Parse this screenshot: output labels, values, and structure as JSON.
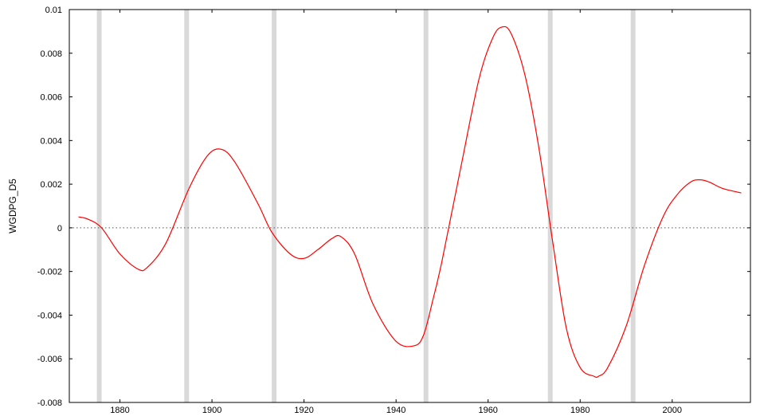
{
  "chart_data": {
    "type": "line",
    "title": "",
    "xlabel": "",
    "ylabel": "WGDPG_D5",
    "xlim": [
      1869,
      2017
    ],
    "ylim": [
      -0.008,
      0.01
    ],
    "x_ticks": [
      1880,
      1900,
      1920,
      1940,
      1960,
      1980,
      2000
    ],
    "x_tick_labels": [
      "1880",
      "1900",
      "1920",
      "1940",
      "1960",
      "1980",
      "2000"
    ],
    "y_ticks": [
      -0.008,
      -0.006,
      -0.004,
      -0.002,
      0,
      0.002,
      0.004,
      0.006,
      0.008,
      0.01
    ],
    "y_tick_labels": [
      "-0.008",
      "-0.006",
      "-0.004",
      "-0.002",
      "0",
      "0.002",
      "0.004",
      "0.006",
      "0.008",
      "0.01"
    ],
    "grid": false,
    "zero_line": {
      "y": 0,
      "style": "dotted"
    },
    "shaded_bands": [
      1875.5,
      1894.5,
      1913.5,
      1946.5,
      1973.5,
      1991.5
    ],
    "colors": {
      "line": "#ff0000",
      "band": "#d9d9d9",
      "zero_line": "#555555",
      "axis": "#000000"
    },
    "series": [
      {
        "x": [
          1871,
          1873,
          1876,
          1880,
          1884,
          1886,
          1890,
          1895,
          1899,
          1902,
          1905,
          1910,
          1913,
          1917,
          1920,
          1923,
          1926,
          1928,
          1931,
          1935,
          1940,
          1944,
          1946,
          1948,
          1950,
          1954,
          1958,
          1961,
          1963,
          1965,
          1968,
          1971,
          1974,
          1977,
          1980,
          1983,
          1984,
          1986,
          1990,
          1994,
          1998,
          2001,
          2004,
          2006,
          2008,
          2011,
          2015
        ],
        "y": [
          0.0005,
          0.0004,
          0.0,
          -0.0012,
          -0.0019,
          -0.0018,
          -0.0007,
          0.0018,
          0.0033,
          0.0036,
          0.003,
          0.0011,
          -0.0002,
          -0.0012,
          -0.0014,
          -0.001,
          -0.0005,
          -0.0004,
          -0.0012,
          -0.0035,
          -0.0052,
          -0.0054,
          -0.0049,
          -0.0033,
          -0.0015,
          0.0027,
          0.0068,
          0.0087,
          0.0092,
          0.0089,
          0.007,
          0.0037,
          -0.0006,
          -0.0046,
          -0.0064,
          -0.0068,
          -0.0068,
          -0.0064,
          -0.0045,
          -0.0017,
          0.0005,
          0.0015,
          0.0021,
          0.0022,
          0.0021,
          0.0018,
          0.0016
        ]
      }
    ]
  }
}
